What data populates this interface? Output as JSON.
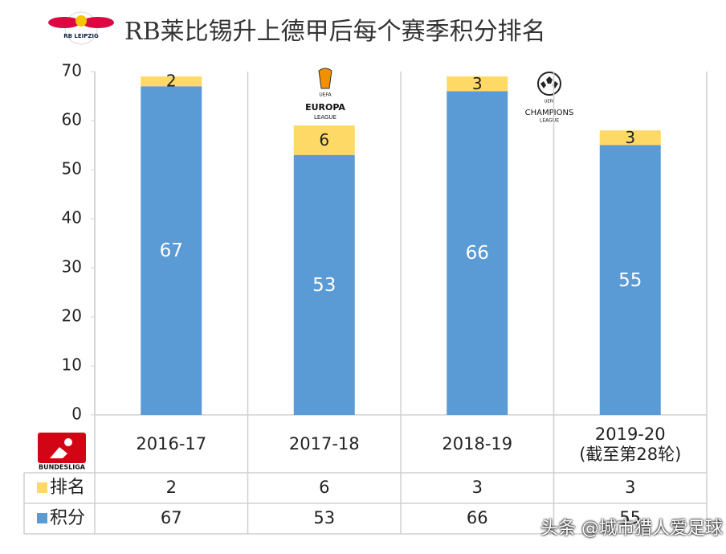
{
  "chart_data": {
    "type": "stacked_bar",
    "title": "RB莱比锡升上德甲后每个赛季积分排名",
    "categories": [
      "2016-17",
      "2017-18",
      "2018-19",
      "2019-20\n(截至第28轮)"
    ],
    "series": [
      {
        "name": "积分",
        "color": "#5b9bd5",
        "values": [
          67,
          53,
          66,
          55
        ]
      },
      {
        "name": "排名",
        "color": "#ffd966",
        "values": [
          2,
          6,
          3,
          3
        ]
      }
    ],
    "ylim": [
      0,
      70
    ],
    "yticks": [
      0,
      10,
      20,
      30,
      40,
      50,
      60,
      70
    ],
    "grid": false,
    "logos": {
      "club": "RB LEIPZIG",
      "europa": [
        "UEFA",
        "EUROPA",
        "LEAGUE"
      ],
      "champions": [
        "UEFA",
        "CHAMPIONS",
        "LEAGUE"
      ],
      "league": "BUNDESLIGA"
    },
    "watermark": "头条 @城市猎人爱足球"
  }
}
